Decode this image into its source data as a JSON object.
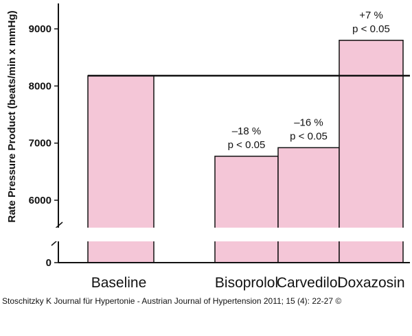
{
  "chart_data": {
    "type": "bar",
    "ylabel": "Rate Pressure Product (beats/min x mmHg)",
    "y_ticks": [
      "0",
      "6000",
      "7000",
      "8000",
      "9000"
    ],
    "ylim": [
      5500,
      9500
    ],
    "axis_break": true,
    "categories": [
      "Baseline",
      "Bisoprolol",
      "Carvedilol",
      "Doxazosin"
    ],
    "values": [
      8180,
      6770,
      6920,
      8800
    ],
    "baseline_reference": 8180,
    "annotations": [
      null,
      [
        "–18 %",
        "p < 0.05"
      ],
      [
        "–16 %",
        "p < 0.05"
      ],
      [
        "+7 %",
        "p < 0.05"
      ]
    ],
    "colors": {
      "bar_fill": "#f4c6d7",
      "bar_stroke": "#111111"
    }
  },
  "caption": "Stoschitzky K Journal für Hypertonie - Austrian Journal of Hypertension 2011; 15 (4): 22-27 ©"
}
